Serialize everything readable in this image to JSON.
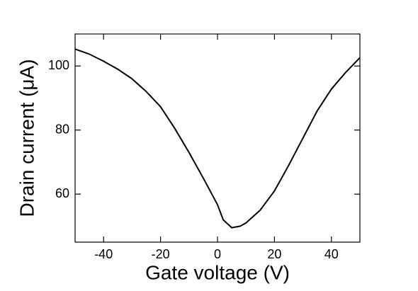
{
  "chart_data": {
    "type": "line",
    "x_label": "Gate voltage (V)",
    "y_label": "Drain current (μA)",
    "x": [
      -50,
      -45,
      -40,
      -35,
      -30,
      -25,
      -20,
      -15,
      -10,
      -5,
      0,
      2,
      5,
      8,
      10,
      15,
      20,
      25,
      30,
      35,
      40,
      45,
      50
    ],
    "series": [
      {
        "name": "Drain current",
        "color": "#000000",
        "values": [
          105.3,
          103.7,
          101.5,
          99,
          96,
          92,
          87.3,
          80.5,
          73,
          65,
          56.7,
          52,
          49.5,
          50,
          51,
          55,
          61,
          69,
          77.5,
          86,
          92.8,
          98,
          102.6
        ]
      }
    ],
    "xlim": [
      -50,
      50
    ],
    "xticks": [
      -40,
      -20,
      0,
      20,
      40
    ],
    "ylim": [
      45,
      110
    ],
    "yticks": [
      60,
      80,
      100
    ],
    "grid": false
  }
}
